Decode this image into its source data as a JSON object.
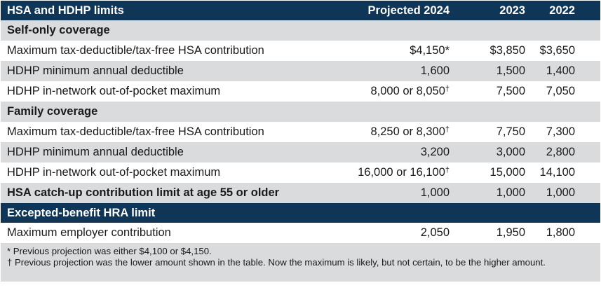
{
  "header": {
    "title": "HSA and HDHP limits",
    "col1": "Projected 2024",
    "col2": "2023",
    "col3": "2022"
  },
  "sections": {
    "self_only": {
      "title": "Self-only coverage",
      "rows": [
        {
          "label": "Maximum tax-deductible/tax-free HSA contribution",
          "proj": "$4,150*",
          "y2023": "$3,850",
          "y2022": "$3,650"
        },
        {
          "label": "HDHP minimum annual deductible",
          "proj": "1,600",
          "y2023": "1,500",
          "y2022": "1,400"
        },
        {
          "label": "HDHP in-network out-of-pocket maximum",
          "proj": "8,000 or 8,050",
          "proj_mark": "†",
          "y2023": "7,500",
          "y2022": "7,050"
        }
      ]
    },
    "family": {
      "title": "Family coverage",
      "rows": [
        {
          "label": "Maximum tax-deductible/tax-free HSA contribution",
          "proj": "8,250 or 8,300",
          "proj_mark": "†",
          "y2023": "7,750",
          "y2022": "7,300"
        },
        {
          "label": "HDHP minimum annual deductible",
          "proj": "3,200",
          "y2023": "3,000",
          "y2022": "2,800"
        },
        {
          "label": "HDHP in-network out-of-pocket maximum",
          "proj": "16,000 or 16,100",
          "proj_mark": "†",
          "y2023": "15,000",
          "y2022": "14,100"
        }
      ]
    },
    "catchup": {
      "label": "HSA catch-up contribution limit at age 55 or older",
      "proj": "1,000",
      "y2023": "1,000",
      "y2022": "1,000"
    },
    "hra": {
      "title": "Excepted-benefit HRA limit",
      "rows": [
        {
          "label": "Maximum employer contribution",
          "proj": "2,050",
          "y2023": "1,950",
          "y2022": "1,800"
        }
      ]
    }
  },
  "notes": {
    "note1": "* Previous projection was either $4,100 or $4,150.",
    "note2_mark": "†",
    "note2": " Previous projection was the lower amount shown in the table. Now the maximum is likely, but not certain, to be the higher amount."
  },
  "colors": {
    "header_bg": "#0f3557",
    "shade_bg": "#d9dbdd"
  }
}
